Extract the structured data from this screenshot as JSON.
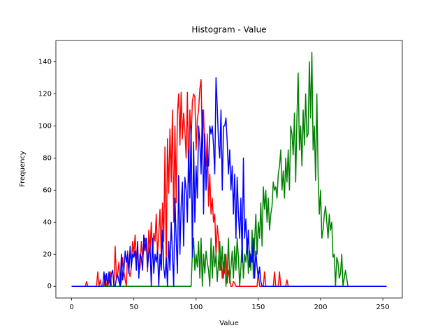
{
  "chart_data": {
    "type": "line",
    "title": "Histogram - Value",
    "x_label": "Value",
    "y_label": "Frequency",
    "x": [
      0,
      1,
      2,
      3,
      4,
      5,
      6,
      7,
      8,
      9,
      10,
      11,
      12,
      13,
      14,
      15,
      16,
      17,
      18,
      19,
      20,
      21,
      22,
      23,
      24,
      25,
      26,
      27,
      28,
      29,
      30,
      31,
      32,
      33,
      34,
      35,
      36,
      37,
      38,
      39,
      40,
      41,
      42,
      43,
      44,
      45,
      46,
      47,
      48,
      49,
      50,
      51,
      52,
      53,
      54,
      55,
      56,
      57,
      58,
      59,
      60,
      61,
      62,
      63,
      64,
      65,
      66,
      67,
      68,
      69,
      70,
      71,
      72,
      73,
      74,
      75,
      76,
      77,
      78,
      79,
      80,
      81,
      82,
      83,
      84,
      85,
      86,
      87,
      88,
      89,
      90,
      91,
      92,
      93,
      94,
      95,
      96,
      97,
      98,
      99,
      100,
      101,
      102,
      103,
      104,
      105,
      106,
      107,
      108,
      109,
      110,
      111,
      112,
      113,
      114,
      115,
      116,
      117,
      118,
      119,
      120,
      121,
      122,
      123,
      124,
      125,
      126,
      127,
      128,
      129,
      130,
      131,
      132,
      133,
      134,
      135,
      136,
      137,
      138,
      139,
      140,
      141,
      142,
      143,
      144,
      145,
      146,
      147,
      148,
      149,
      150,
      151,
      152,
      153,
      154,
      155,
      156,
      157,
      158,
      159,
      160,
      161,
      162,
      163,
      164,
      165,
      166,
      167,
      168,
      169,
      170,
      171,
      172,
      173,
      174,
      175,
      176,
      177,
      178,
      179,
      180,
      181,
      182,
      183,
      184,
      185,
      186,
      187,
      188,
      189,
      190,
      191,
      192,
      193,
      194,
      195,
      196,
      197,
      198,
      199,
      200,
      201,
      202,
      203,
      204,
      205,
      206,
      207,
      208,
      209,
      210,
      211,
      212,
      213,
      214,
      215,
      216,
      217,
      218,
      219,
      220,
      221,
      222,
      223,
      224,
      225,
      226,
      227,
      228,
      229,
      230,
      231,
      232,
      233,
      234,
      235,
      236,
      237,
      238,
      239,
      240,
      241,
      242,
      243,
      244,
      245,
      246,
      247,
      248,
      249,
      250,
      251,
      252,
      253
    ],
    "series": [
      {
        "color": "#ff0000",
        "values": [
          0,
          0,
          0,
          0,
          0,
          0,
          0,
          0,
          0,
          0,
          0,
          0,
          3,
          0,
          0,
          0,
          0,
          0,
          0,
          0,
          0,
          9,
          0,
          4,
          0,
          0,
          0,
          7,
          0,
          0,
          3,
          9,
          0,
          0,
          0,
          25,
          5,
          8,
          15,
          0,
          3,
          18,
          9,
          4,
          0,
          22,
          9,
          6,
          12,
          28,
          20,
          32,
          17,
          22,
          9,
          12,
          28,
          18,
          23,
          30,
          27,
          9,
          35,
          22,
          40,
          18,
          33,
          28,
          45,
          20,
          32,
          48,
          18,
          52,
          28,
          87,
          12,
          92,
          58,
          98,
          65,
          110,
          40,
          100,
          52,
          108,
          120,
          88,
          121,
          92,
          108,
          97,
          80,
          121,
          65,
          110,
          92,
          115,
          120,
          118,
          85,
          104,
          110,
          123,
          129,
          90,
          110,
          80,
          75,
          95,
          50,
          70,
          45,
          55,
          40,
          45,
          20,
          38,
          30,
          10,
          18,
          5,
          15,
          8,
          20,
          2,
          10,
          5,
          0,
          0,
          3,
          2,
          0,
          0,
          0,
          0,
          0,
          0,
          0,
          0,
          0,
          0,
          0,
          0,
          0,
          0,
          0,
          0,
          0,
          0,
          9,
          0,
          0,
          0,
          0,
          9,
          0,
          0,
          0,
          0,
          0,
          0,
          0,
          9,
          0,
          0,
          0,
          9,
          0,
          0,
          0,
          0,
          0,
          4,
          0,
          0,
          0,
          0,
          0,
          0,
          0,
          0,
          0,
          0,
          0,
          0,
          0,
          0,
          0,
          0,
          0,
          0,
          0,
          0,
          0,
          0,
          0,
          0,
          0,
          0,
          0,
          0,
          0,
          0,
          0,
          0,
          0,
          0,
          0,
          0,
          0,
          0,
          0,
          0,
          0,
          0,
          0,
          0,
          0,
          0,
          0,
          0,
          0,
          0,
          0,
          0,
          0,
          0,
          0,
          0,
          0,
          0,
          0,
          0,
          0,
          0,
          0,
          0,
          0,
          0,
          0,
          0,
          0,
          0,
          0,
          0,
          0,
          0,
          0,
          0,
          0,
          0,
          0,
          0
        ]
      },
      {
        "color": "#008000",
        "values": [
          0,
          0,
          0,
          0,
          0,
          0,
          0,
          0,
          0,
          0,
          0,
          0,
          0,
          0,
          0,
          0,
          0,
          0,
          0,
          0,
          0,
          0,
          0,
          0,
          0,
          0,
          0,
          0,
          0,
          0,
          0,
          0,
          0,
          0,
          0,
          0,
          0,
          0,
          0,
          0,
          0,
          0,
          0,
          0,
          0,
          0,
          0,
          0,
          0,
          0,
          0,
          0,
          0,
          0,
          0,
          0,
          0,
          0,
          0,
          0,
          0,
          0,
          0,
          0,
          0,
          0,
          0,
          0,
          0,
          0,
          0,
          0,
          0,
          0,
          0,
          0,
          0,
          0,
          0,
          0,
          0,
          0,
          0,
          0,
          0,
          0,
          0,
          0,
          0,
          0,
          0,
          0,
          0,
          0,
          0,
          0,
          0,
          20,
          30,
          10,
          20,
          12,
          28,
          5,
          30,
          0,
          20,
          8,
          22,
          15,
          10,
          0,
          30,
          5,
          25,
          12,
          20,
          3,
          15,
          28,
          10,
          25,
          5,
          20,
          0,
          8,
          30,
          2,
          12,
          22,
          5,
          25,
          10,
          30,
          18,
          0,
          12,
          28,
          5,
          20,
          15,
          30,
          8,
          22,
          10,
          35,
          5,
          28,
          45,
          20,
          40,
          30,
          52,
          25,
          62,
          48,
          60,
          40,
          55,
          35,
          45,
          50,
          65,
          60,
          62,
          55,
          70,
          75,
          85,
          60,
          72,
          55,
          80,
          65,
          85,
          60,
          100,
          95,
          82,
          108,
          65,
          105,
          133,
          85,
          100,
          75,
          110,
          88,
          120,
          93,
          95,
          140,
          105,
          146,
          85,
          100,
          66,
          120,
          70,
          45,
          60,
          30,
          35,
          45,
          50,
          40,
          30,
          45,
          35,
          40,
          18,
          20,
          0,
          18,
          15,
          5,
          8,
          20,
          0,
          5,
          10,
          5,
          0,
          0,
          0,
          0,
          0,
          0,
          0,
          0,
          0,
          0,
          0,
          0,
          0,
          0,
          0,
          0,
          0,
          0,
          0,
          0,
          0,
          0,
          0,
          0,
          0,
          0,
          0,
          0,
          0,
          0,
          0,
          0
        ]
      },
      {
        "color": "#0000ff",
        "values": [
          0,
          0,
          0,
          0,
          0,
          0,
          0,
          0,
          0,
          0,
          0,
          0,
          0,
          0,
          0,
          0,
          0,
          0,
          0,
          0,
          0,
          0,
          0,
          0,
          0,
          0,
          9,
          0,
          8,
          0,
          9,
          0,
          8,
          10,
          0,
          0,
          5,
          7,
          3,
          0,
          20,
          4,
          10,
          22,
          15,
          20,
          8,
          25,
          12,
          20,
          18,
          22,
          10,
          28,
          5,
          20,
          18,
          10,
          32,
          22,
          30,
          12,
          20,
          25,
          0,
          30,
          8,
          20,
          15,
          22,
          0,
          20,
          10,
          35,
          12,
          5,
          18,
          0,
          28,
          10,
          40,
          20,
          0,
          55,
          30,
          8,
          69,
          20,
          50,
          65,
          25,
          68,
          60,
          40,
          85,
          55,
          100,
          18,
          90,
          40,
          75,
          55,
          100,
          90,
          70,
          110,
          45,
          95,
          60,
          82,
          75,
          100,
          95,
          100,
          88,
          70,
          130,
          112,
          90,
          80,
          110,
          60,
          100,
          100,
          105,
          90,
          70,
          85,
          60,
          75,
          45,
          70,
          30,
          68,
          45,
          30,
          55,
          15,
          80,
          30,
          42,
          20,
          35,
          12,
          20,
          15,
          30,
          5,
          22,
          12,
          5,
          12,
          3,
          0,
          0,
          0,
          0,
          0,
          0,
          0,
          0,
          0,
          0,
          0,
          0,
          0,
          0,
          0,
          0,
          0,
          0,
          0,
          0,
          0,
          0,
          0,
          0,
          0,
          0,
          0,
          0,
          0,
          0,
          0,
          0,
          0,
          0,
          0,
          0,
          0,
          0,
          0,
          0,
          0,
          0,
          0,
          0,
          0,
          0,
          0,
          0,
          0,
          0,
          0,
          0,
          0,
          0,
          0,
          0,
          0,
          0,
          0,
          0,
          0,
          0,
          0,
          0,
          0,
          0,
          0,
          0,
          0,
          0,
          0,
          0,
          0,
          0,
          0,
          0,
          0,
          0,
          0,
          0,
          0,
          0,
          0,
          0,
          0,
          0,
          0,
          0,
          0,
          0,
          0,
          0,
          0,
          0,
          0,
          0,
          0,
          0,
          0,
          0,
          0
        ]
      }
    ],
    "xlim": [
      -12.65,
      265.65
    ],
    "xticks": [
      0,
      50,
      100,
      150,
      200,
      250
    ],
    "ylim": [
      -7.3,
      153.3
    ],
    "yticks": [
      0,
      20,
      40,
      60,
      80,
      100,
      120,
      140
    ]
  }
}
